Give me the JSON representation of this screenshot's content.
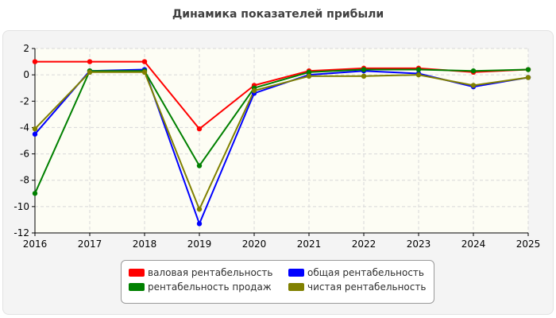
{
  "chart_data": {
    "type": "line",
    "title": "Динамика показателей прибыли",
    "x": [
      "2016",
      "2017",
      "2018",
      "2019",
      "2020",
      "2021",
      "2022",
      "2023",
      "2024",
      "2025"
    ],
    "ylim": [
      -12,
      2
    ],
    "yticks": [
      2,
      0,
      -2,
      -4,
      -6,
      -8,
      -10,
      -12
    ],
    "grid": true,
    "legend_position": "bottom",
    "series": [
      {
        "name": "валовая рентабельность",
        "color": "#ff0000",
        "values": [
          1.0,
          1.0,
          1.0,
          -4.1,
          -0.8,
          0.3,
          0.5,
          0.5,
          0.2,
          0.4
        ]
      },
      {
        "name": "общая рентабельность",
        "color": "#0000ff",
        "values": [
          -4.5,
          0.3,
          0.4,
          -11.3,
          -1.4,
          0.0,
          0.3,
          0.1,
          -0.9,
          -0.2
        ]
      },
      {
        "name": "рентабельность продаж",
        "color": "#008000",
        "values": [
          -9.0,
          0.3,
          0.3,
          -6.9,
          -1.0,
          0.2,
          0.4,
          0.4,
          0.3,
          0.4
        ]
      },
      {
        "name": "чистая рентабельность",
        "color": "#808000",
        "values": [
          -4.1,
          0.2,
          0.2,
          -10.2,
          -1.2,
          -0.1,
          -0.1,
          0.0,
          -0.8,
          -0.2
        ]
      }
    ]
  }
}
